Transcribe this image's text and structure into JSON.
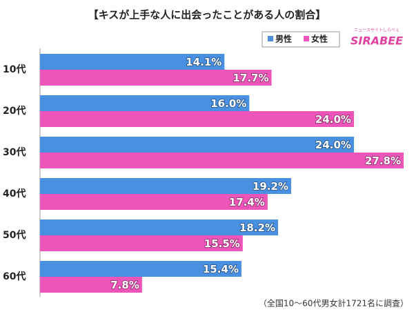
{
  "chart_data": {
    "type": "bar",
    "orientation": "horizontal",
    "title": "【キスが上手な人に出会ったことがある人の割合】",
    "logo": {
      "caption": "ニュースサイトしらべぇ",
      "name": "SIRABEE"
    },
    "note": "（全国10～60代男女計1721名に調査）",
    "categories": [
      "10代",
      "20代",
      "30代",
      "40代",
      "50代",
      "60代"
    ],
    "series": [
      {
        "name": "男性",
        "color": "#4a90e2",
        "values": [
          14.1,
          16.0,
          24.0,
          19.2,
          18.2,
          15.4
        ],
        "value_labels": [
          "14.1%",
          "16.0%",
          "24.0%",
          "19.2%",
          "18.2%",
          "15.4%"
        ]
      },
      {
        "name": "女性",
        "color": "#ee55b8",
        "values": [
          17.7,
          24.0,
          27.8,
          17.4,
          15.5,
          7.8
        ],
        "value_labels": [
          "17.7%",
          "24.0%",
          "27.8%",
          "17.4%",
          "15.5%",
          "7.8%"
        ]
      }
    ],
    "legend": "top-right"
  }
}
